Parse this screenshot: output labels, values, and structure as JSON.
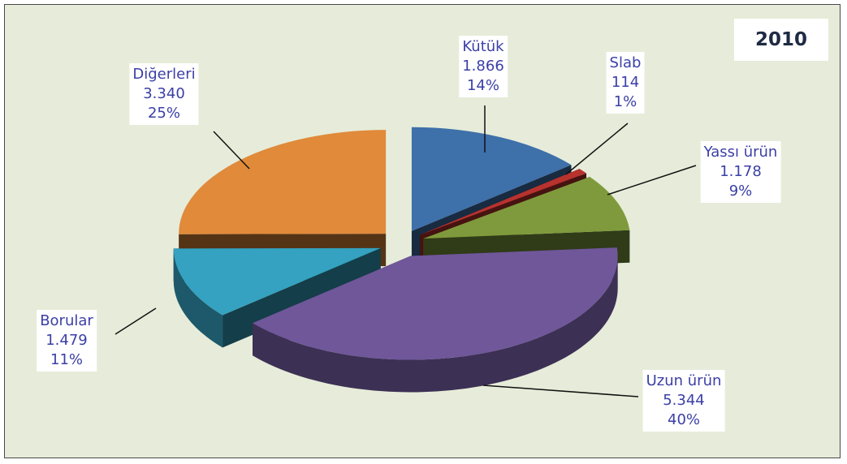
{
  "chart_data": {
    "type": "pie",
    "title": "2010",
    "slices": [
      {
        "label": "Kütük",
        "value_text": "1.866",
        "percent_text": "14%",
        "value": 1866,
        "percent": 14,
        "color": "#3e70aa"
      },
      {
        "label": "Slab",
        "value_text": "114",
        "percent_text": "1%",
        "value": 114,
        "percent": 1,
        "color": "#b8322e"
      },
      {
        "label": "Yassı ürün",
        "value_text": "1.178",
        "percent_text": "9%",
        "value": 1178,
        "percent": 9,
        "color": "#7f9a3c"
      },
      {
        "label": "Uzun ürün",
        "value_text": "5.344",
        "percent_text": "40%",
        "value": 5344,
        "percent": 40,
        "color": "#6f579a"
      },
      {
        "label": "Borular",
        "value_text": "1.479",
        "percent_text": "11%",
        "value": 1479,
        "percent": 11,
        "color": "#34a2c0"
      },
      {
        "label": "Diğerleri",
        "value_text": "3.340",
        "percent_text": "25%",
        "value": 3340,
        "percent": 25,
        "color": "#e08a3a"
      }
    ],
    "legend": "none",
    "style": "3d-exploded"
  },
  "colors": {
    "background": "#e6ecd9",
    "label_text": "#3b3fa6",
    "frame": "#4a4a4a"
  }
}
